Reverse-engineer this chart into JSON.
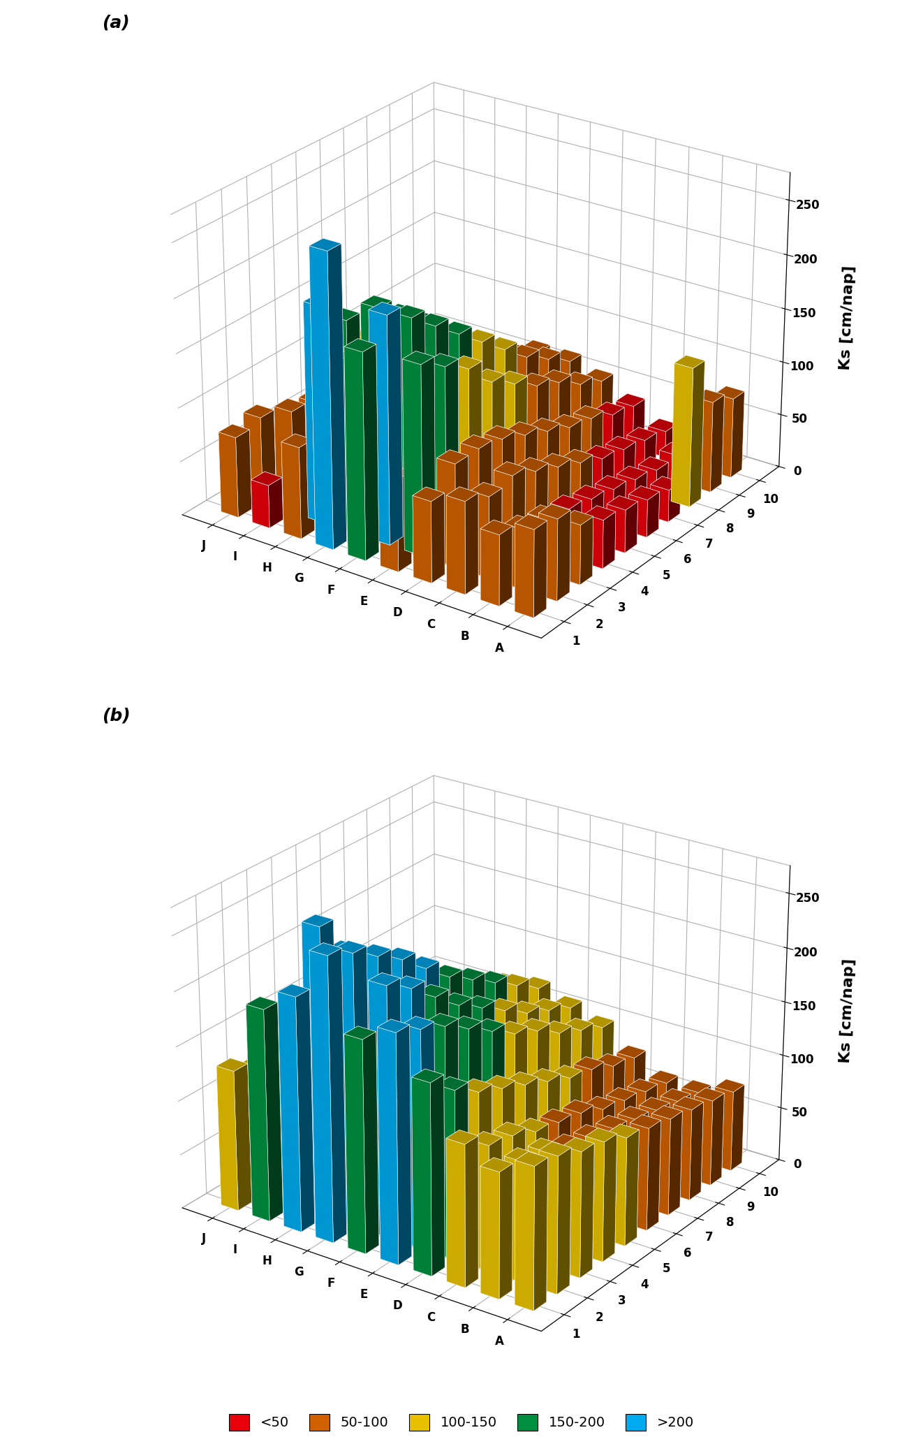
{
  "x_labels": [
    "J",
    "I",
    "H",
    "G",
    "F",
    "E",
    "D",
    "C",
    "B",
    "A"
  ],
  "y_labels": [
    "1",
    "2",
    "3",
    "4",
    "5",
    "6",
    "7",
    "8",
    "9",
    "10"
  ],
  "color_ranges": {
    "<50": "#e8000a",
    "50-100": "#d06000",
    "100-150": "#e8c000",
    "150-200": "#009040",
    ">200": "#00aaee"
  },
  "legend_labels": [
    "<50",
    "50-100",
    "100-150",
    "150-200",
    ">200"
  ],
  "legend_colors": [
    "#e8000a",
    "#d06000",
    "#e8c000",
    "#009040",
    "#00aaee"
  ],
  "panel_a_label": "(a)",
  "panel_b_label": "(b)",
  "ylabel": "Ks [cm/nap]",
  "zlim": [
    0,
    275
  ],
  "zticks": [
    0,
    50,
    100,
    150,
    200,
    250
  ],
  "data_a": [
    [
      75,
      40,
      85,
      270,
      190,
      85,
      75,
      85,
      65,
      80
    ],
    [
      80,
      95,
      200,
      160,
      210,
      175,
      95,
      75,
      55,
      75
    ],
    [
      55,
      90,
      175,
      195,
      195,
      160,
      95,
      80,
      50,
      55
    ],
    [
      40,
      75,
      145,
      175,
      175,
      145,
      90,
      70,
      45,
      45
    ],
    [
      35,
      65,
      125,
      155,
      155,
      120,
      80,
      60,
      40,
      40
    ],
    [
      35,
      55,
      110,
      130,
      135,
      105,
      70,
      50,
      35,
      35
    ],
    [
      30,
      45,
      90,
      110,
      115,
      90,
      60,
      40,
      30,
      30
    ],
    [
      30,
      40,
      80,
      90,
      95,
      80,
      55,
      35,
      25,
      130
    ],
    [
      25,
      35,
      65,
      75,
      80,
      65,
      45,
      30,
      25,
      85
    ],
    [
      20,
      30,
      55,
      65,
      65,
      55,
      40,
      25,
      20,
      75
    ]
  ],
  "data_b": [
    [
      130,
      195,
      215,
      260,
      195,
      210,
      175,
      130,
      115,
      130
    ],
    [
      120,
      175,
      265,
      250,
      230,
      200,
      155,
      115,
      110,
      125
    ],
    [
      115,
      165,
      230,
      235,
      215,
      190,
      140,
      110,
      105,
      115
    ],
    [
      110,
      155,
      205,
      220,
      195,
      175,
      130,
      100,
      95,
      110
    ],
    [
      100,
      145,
      185,
      200,
      175,
      160,
      120,
      95,
      90,
      100
    ],
    [
      95,
      135,
      165,
      180,
      160,
      145,
      110,
      90,
      85,
      95
    ],
    [
      90,
      125,
      150,
      165,
      145,
      135,
      100,
      80,
      80,
      90
    ],
    [
      85,
      115,
      135,
      150,
      130,
      120,
      95,
      75,
      75,
      85
    ],
    [
      80,
      110,
      125,
      135,
      120,
      110,
      85,
      70,
      70,
      80
    ],
    [
      75,
      100,
      115,
      120,
      110,
      100,
      80,
      65,
      65,
      75
    ]
  ],
  "background_color": "#ffffff",
  "figsize": [
    13.22,
    20.67
  ],
  "dpi": 100,
  "elev": 25,
  "azim": -55
}
